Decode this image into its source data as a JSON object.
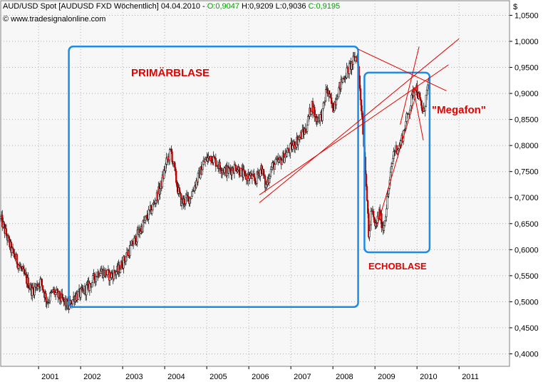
{
  "header": {
    "instrument_info": "AUD/USD Spot [AUDUSD FXD  Wöchentlich] 04.04.2010 - ",
    "o_label": "O:0,9047",
    "h_label": "H:0,9209",
    "l_label": "L:0,9036",
    "c_label": "C:0,9195",
    "source": "© www.tradesignalonline.com",
    "currency_symbol": "$"
  },
  "colors": {
    "background": "#ffffff",
    "plot_area": "#f7f7f7",
    "grid": "#b0b0b0",
    "candle_up": "#000000",
    "candle_down": "#c00000",
    "box_blue": "#1e8ce6",
    "trend_red": "#e60000",
    "open_green": "#00a000",
    "close_green": "#00a000"
  },
  "annotations": {
    "primary_bubble": "PRIMÄRBLASE",
    "echo_bubble": "ECHOBLASE",
    "megaphone": "\"Megafon\""
  },
  "chart_data": {
    "type": "candlestick",
    "title": "AUD/USD Spot [AUDUSD FXD  Wöchentlich] 04.04.2010",
    "frequency": "weekly",
    "x_ticks": [
      "2001",
      "2002",
      "2003",
      "2004",
      "2005",
      "2006",
      "2007",
      "2008",
      "2009",
      "2010",
      "2011"
    ],
    "xlim": [
      2000.1,
      2012.2
    ],
    "y_ticks": [
      "0,4000",
      "0,4500",
      "0,5000",
      "0,5500",
      "0,6000",
      "0,6500",
      "0,7000",
      "0,7500",
      "0,8000",
      "0,8500",
      "0,9000",
      "0,9500",
      "1,0000",
      "1,0500"
    ],
    "ylim": [
      0.376,
      1.078
    ],
    "grid": true,
    "last_bar": {
      "open": 0.9047,
      "high": 0.9209,
      "low": 0.9036,
      "close": 0.9195
    },
    "price_path": [
      [
        2000.1,
        0.66
      ],
      [
        2000.35,
        0.6
      ],
      [
        2000.6,
        0.56
      ],
      [
        2000.85,
        0.52
      ],
      [
        2001.05,
        0.54
      ],
      [
        2001.2,
        0.5
      ],
      [
        2001.35,
        0.52
      ],
      [
        2001.6,
        0.5
      ],
      [
        2001.72,
        0.49
      ],
      [
        2001.85,
        0.51
      ],
      [
        2002.0,
        0.515
      ],
      [
        2002.2,
        0.53
      ],
      [
        2002.45,
        0.56
      ],
      [
        2002.7,
        0.55
      ],
      [
        2002.9,
        0.56
      ],
      [
        2003.1,
        0.59
      ],
      [
        2003.3,
        0.62
      ],
      [
        2003.5,
        0.65
      ],
      [
        2003.7,
        0.68
      ],
      [
        2003.9,
        0.72
      ],
      [
        2004.05,
        0.77
      ],
      [
        2004.15,
        0.79
      ],
      [
        2004.3,
        0.72
      ],
      [
        2004.4,
        0.69
      ],
      [
        2004.6,
        0.7
      ],
      [
        2004.8,
        0.74
      ],
      [
        2004.95,
        0.77
      ],
      [
        2005.1,
        0.78
      ],
      [
        2005.3,
        0.76
      ],
      [
        2005.5,
        0.75
      ],
      [
        2005.7,
        0.76
      ],
      [
        2005.9,
        0.74
      ],
      [
        2006.05,
        0.74
      ],
      [
        2006.15,
        0.73
      ],
      [
        2006.3,
        0.76
      ],
      [
        2006.4,
        0.72
      ],
      [
        2006.55,
        0.76
      ],
      [
        2006.75,
        0.77
      ],
      [
        2006.95,
        0.79
      ],
      [
        2007.15,
        0.81
      ],
      [
        2007.35,
        0.83
      ],
      [
        2007.5,
        0.88
      ],
      [
        2007.6,
        0.85
      ],
      [
        2007.75,
        0.86
      ],
      [
        2007.85,
        0.91
      ],
      [
        2008.0,
        0.87
      ],
      [
        2008.1,
        0.9
      ],
      [
        2008.25,
        0.93
      ],
      [
        2008.4,
        0.95
      ],
      [
        2008.55,
        0.97
      ],
      [
        2008.58,
        0.97
      ],
      [
        2008.7,
        0.85
      ],
      [
        2008.8,
        0.72
      ],
      [
        2008.85,
        0.62
      ],
      [
        2008.92,
        0.68
      ],
      [
        2009.0,
        0.64
      ],
      [
        2009.1,
        0.67
      ],
      [
        2009.2,
        0.64
      ],
      [
        2009.3,
        0.7
      ],
      [
        2009.45,
        0.79
      ],
      [
        2009.6,
        0.8
      ],
      [
        2009.75,
        0.85
      ],
      [
        2009.85,
        0.88
      ],
      [
        2009.95,
        0.92
      ],
      [
        2010.05,
        0.89
      ],
      [
        2010.15,
        0.86
      ],
      [
        2010.25,
        0.91
      ],
      [
        2010.3,
        0.92
      ]
    ],
    "overlays": {
      "primary_box": {
        "x": [
          2001.72,
          2008.6
        ],
        "y": [
          0.49,
          0.99
        ]
      },
      "echo_box": {
        "x": [
          2008.75,
          2010.3
        ],
        "y": [
          0.595,
          0.94
        ]
      },
      "trendlines": [
        {
          "from": [
            2006.25,
            0.69
          ],
          "to": [
            2011.0,
            1.005
          ]
        },
        {
          "from": [
            2006.25,
            0.705
          ],
          "to": [
            2010.75,
            0.955
          ]
        },
        {
          "from": [
            2008.6,
            0.985
          ],
          "to": [
            2010.7,
            0.905
          ]
        },
        {
          "from": [
            2009.6,
            0.84
          ],
          "to": [
            2010.05,
            0.99
          ]
        },
        {
          "from": [
            2009.05,
            0.645
          ],
          "to": [
            2009.95,
            0.89
          ]
        },
        {
          "from": [
            2009.9,
            0.915
          ],
          "to": [
            2010.15,
            0.81
          ]
        }
      ]
    }
  }
}
